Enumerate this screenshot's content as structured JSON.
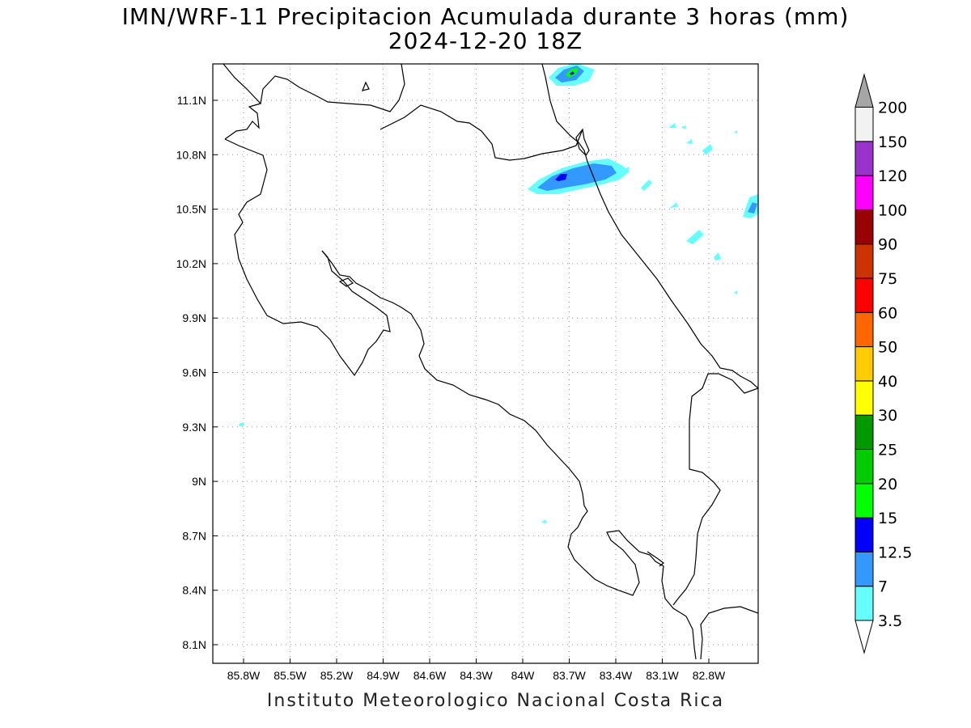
{
  "title_line1": "IMN/WRF-11 Precipitacion Acumulada durante 3 horas (mm)",
  "title_line2": "2024-12-20 18Z",
  "footer": "Instituto Meteorologico Nacional Costa Rica",
  "map": {
    "lon_labels": [
      "85.8W",
      "85.5W",
      "85.2W",
      "84.9W",
      "84.6W",
      "84.3W",
      "84W",
      "83.7W",
      "83.4W",
      "83.1W",
      "82.8W"
    ],
    "lat_labels": [
      "11.1N",
      "10.8N",
      "10.5N",
      "10.2N",
      "9.9N",
      "9.6N",
      "9.3N",
      "9N",
      "8.7N",
      "8.4N",
      "8.1N"
    ],
    "lon_values": [
      -85.8,
      -85.5,
      -85.2,
      -84.9,
      -84.6,
      -84.3,
      -84.0,
      -83.7,
      -83.4,
      -83.1,
      -82.8
    ],
    "lat_values": [
      11.1,
      10.8,
      10.5,
      10.2,
      9.9,
      9.6,
      9.3,
      9.0,
      8.7,
      8.4,
      8.1
    ]
  },
  "colorbar": {
    "units": "mm",
    "labels": [
      "3.5",
      "7",
      "12.5",
      "15",
      "20",
      "25",
      "30",
      "40",
      "50",
      "60",
      "75",
      "90",
      "100",
      "120",
      "150",
      "200"
    ],
    "colors": [
      "#66ffff",
      "#3399ff",
      "#0000ff",
      "#00ff00",
      "#00cc00",
      "#009900",
      "#ffff00",
      "#ffcc00",
      "#ff6600",
      "#ff0000",
      "#cc3300",
      "#990000",
      "#ff00ff",
      "#9933cc",
      "#f2f2f2",
      "#a6a6a6"
    ]
  },
  "precip_colors": {
    "light": "#66ffff",
    "medium": "#3399ff",
    "heavy": "#0000ff",
    "very_heavy": "#00ff00"
  }
}
